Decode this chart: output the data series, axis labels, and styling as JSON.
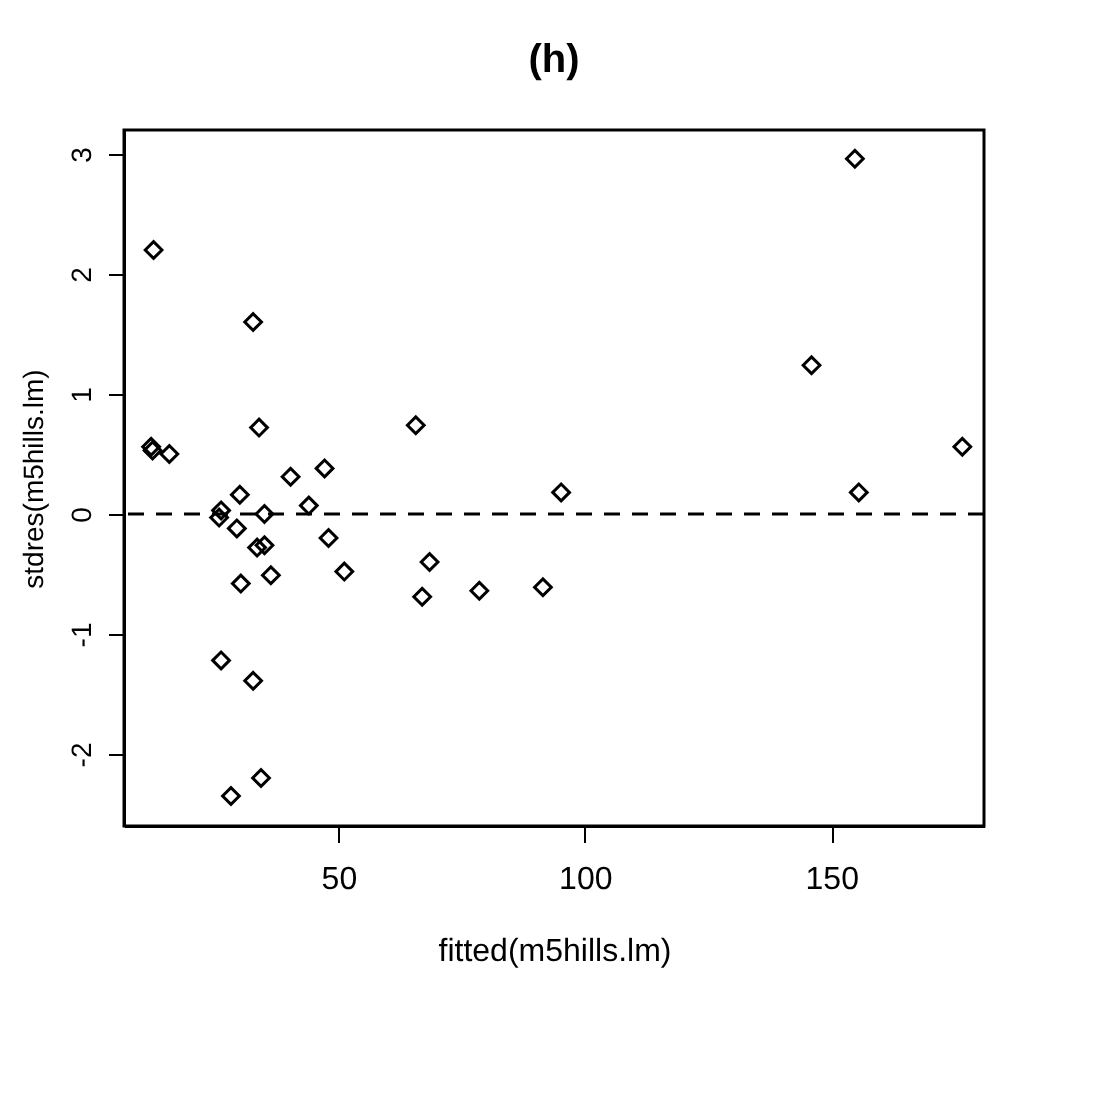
{
  "chart_data": {
    "type": "scatter",
    "title": "(h)",
    "xlabel": "fitted(m5hills.lm)",
    "ylabel": "stdres(m5hills.lm)",
    "x": [
      12.5,
      12,
      12.3,
      15.7,
      32.7,
      33.9,
      30,
      26.2,
      25.8,
      29.4,
      35,
      40.3,
      47.2,
      44,
      48,
      51.2,
      33.5,
      35,
      36.3,
      30.2,
      26.2,
      32.7,
      34.3,
      28.2,
      65.7,
      68.5,
      67,
      78.6,
      91.5,
      95.2,
      154.8,
      146,
      155.6,
      176.6
    ],
    "series": [
      {
        "color": "#000000",
        "values": [
          2.2,
          0.56,
          0.53,
          0.5,
          1.6,
          0.72,
          0.16,
          0.03,
          -0.03,
          -0.12,
          0.0,
          0.31,
          0.38,
          0.07,
          -0.2,
          -0.48,
          -0.28,
          -0.26,
          -0.51,
          -0.58,
          -1.22,
          -1.39,
          -2.2,
          -2.35,
          0.74,
          -0.4,
          -0.69,
          -0.64,
          -0.61,
          0.18,
          2.96,
          1.24,
          0.18,
          0.56
        ]
      }
    ],
    "marker": "diamond",
    "xlim": [
      6.5,
      181
    ],
    "ylim": [
      -2.6,
      3.2
    ],
    "xticks": [
      50,
      100,
      150
    ],
    "yticks": [
      -2,
      -1,
      0,
      1,
      2,
      3
    ],
    "grid": false,
    "ref_lines": [
      {
        "axis": "y",
        "value": 0,
        "line_style": "dashed",
        "color": "#000000"
      }
    ]
  }
}
